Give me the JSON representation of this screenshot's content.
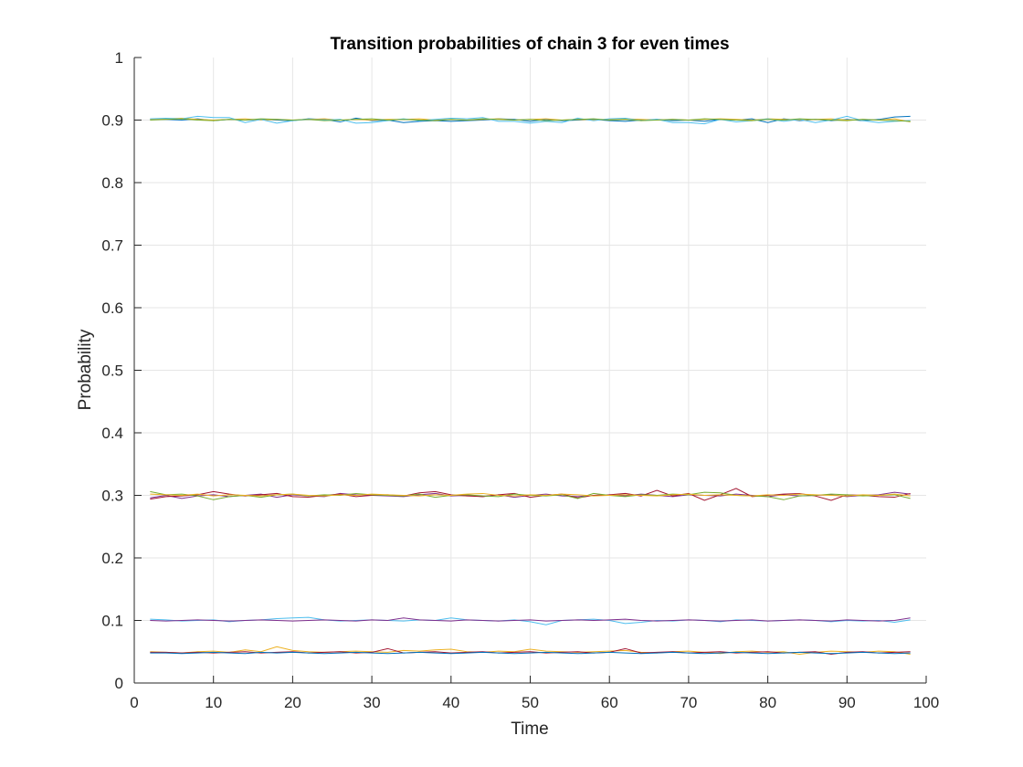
{
  "chart_data": {
    "type": "line",
    "title": "Transition probabilities of chain 3 for even times",
    "xlabel": "Time",
    "ylabel": "Probability",
    "xlim": [
      0,
      100
    ],
    "ylim": [
      0,
      1
    ],
    "grid": true,
    "xticks": [
      0,
      10,
      20,
      30,
      40,
      50,
      60,
      70,
      80,
      90,
      100
    ],
    "yticks": [
      0,
      0.1,
      0.2,
      0.3,
      0.4,
      0.5,
      0.6,
      0.7,
      0.8,
      0.9,
      1
    ],
    "xtick_labels": [
      "0",
      "10",
      "20",
      "30",
      "40",
      "50",
      "60",
      "70",
      "80",
      "90",
      "100"
    ],
    "ytick_labels": [
      "0",
      "0.1",
      "0.2",
      "0.3",
      "0.4",
      "0.5",
      "0.6",
      "0.7",
      "0.8",
      "0.9",
      "1"
    ],
    "x": [
      2,
      4,
      6,
      8,
      10,
      12,
      14,
      16,
      18,
      20,
      22,
      24,
      26,
      28,
      30,
      32,
      34,
      36,
      38,
      40,
      42,
      44,
      46,
      48,
      50,
      52,
      54,
      56,
      58,
      60,
      62,
      64,
      66,
      68,
      70,
      72,
      74,
      76,
      78,
      80,
      82,
      84,
      86,
      88,
      90,
      92,
      94,
      96,
      98
    ],
    "series": [
      {
        "color": "#0072BD",
        "values": [
          0.901,
          0.901,
          0.9,
          0.902,
          0.899,
          0.901,
          0.9,
          0.901,
          0.9,
          0.899,
          0.902,
          0.901,
          0.897,
          0.903,
          0.899,
          0.9,
          0.896,
          0.898,
          0.899,
          0.898,
          0.899,
          0.9,
          0.902,
          0.901,
          0.898,
          0.901,
          0.899,
          0.9,
          0.901,
          0.899,
          0.898,
          0.9,
          0.901,
          0.899,
          0.9,
          0.898,
          0.901,
          0.9,
          0.902,
          0.896,
          0.902,
          0.899,
          0.901,
          0.899,
          0.901,
          0.899,
          0.901,
          0.905,
          0.906
        ]
      },
      {
        "color": "#EDB120",
        "values": [
          0.901,
          0.902,
          0.903,
          0.901,
          0.9,
          0.901,
          0.902,
          0.9,
          0.901,
          0.9,
          0.901,
          0.902,
          0.9,
          0.901,
          0.9,
          0.901,
          0.901,
          0.902,
          0.9,
          0.901,
          0.9,
          0.901,
          0.902,
          0.9,
          0.901,
          0.902,
          0.9,
          0.901,
          0.9,
          0.901,
          0.902,
          0.901,
          0.9,
          0.901,
          0.9,
          0.901,
          0.902,
          0.901,
          0.9,
          0.902,
          0.901,
          0.9,
          0.901,
          0.902,
          0.9,
          0.901,
          0.9,
          0.902,
          0.897
        ]
      },
      {
        "color": "#4DBEEE",
        "values": [
          0.902,
          0.903,
          0.902,
          0.906,
          0.904,
          0.904,
          0.896,
          0.901,
          0.895,
          0.899,
          0.901,
          0.9,
          0.901,
          0.895,
          0.896,
          0.899,
          0.902,
          0.899,
          0.901,
          0.903,
          0.902,
          0.904,
          0.898,
          0.898,
          0.895,
          0.898,
          0.896,
          0.903,
          0.899,
          0.902,
          0.903,
          0.899,
          0.901,
          0.896,
          0.896,
          0.894,
          0.901,
          0.897,
          0.899,
          0.902,
          0.898,
          0.901,
          0.896,
          0.9,
          0.906,
          0.899,
          0.896,
          0.898,
          0.899
        ]
      },
      {
        "color": "#77AC30",
        "values": [
          0.9,
          0.901,
          0.902,
          0.9,
          0.899,
          0.901,
          0.9,
          0.902,
          0.901,
          0.9,
          0.901,
          0.899,
          0.9,
          0.901,
          0.902,
          0.9,
          0.901,
          0.9,
          0.899,
          0.901,
          0.9,
          0.902,
          0.901,
          0.9,
          0.901,
          0.899,
          0.9,
          0.901,
          0.902,
          0.9,
          0.901,
          0.899,
          0.9,
          0.901,
          0.9,
          0.902,
          0.901,
          0.9,
          0.899,
          0.901,
          0.9,
          0.902,
          0.901,
          0.9,
          0.899,
          0.901,
          0.9,
          0.899,
          0.898
        ]
      },
      {
        "color": "#7E2F8E",
        "values": [
          0.296,
          0.3,
          0.295,
          0.299,
          0.301,
          0.298,
          0.3,
          0.302,
          0.297,
          0.301,
          0.299,
          0.298,
          0.303,
          0.301,
          0.3,
          0.299,
          0.298,
          0.301,
          0.303,
          0.299,
          0.3,
          0.298,
          0.301,
          0.297,
          0.3,
          0.302,
          0.299,
          0.298,
          0.3,
          0.301,
          0.299,
          0.302,
          0.3,
          0.298,
          0.301,
          0.3,
          0.299,
          0.302,
          0.3,
          0.298,
          0.301,
          0.299,
          0.3,
          0.301,
          0.298,
          0.3,
          0.301,
          0.305,
          0.302
        ]
      },
      {
        "color": "#A2142F",
        "values": [
          0.294,
          0.298,
          0.299,
          0.301,
          0.306,
          0.302,
          0.299,
          0.301,
          0.303,
          0.298,
          0.297,
          0.3,
          0.302,
          0.298,
          0.3,
          0.301,
          0.299,
          0.304,
          0.306,
          0.301,
          0.299,
          0.298,
          0.301,
          0.303,
          0.297,
          0.3,
          0.302,
          0.296,
          0.3,
          0.301,
          0.303,
          0.299,
          0.308,
          0.299,
          0.303,
          0.292,
          0.301,
          0.311,
          0.298,
          0.3,
          0.302,
          0.303,
          0.299,
          0.292,
          0.301,
          0.3,
          0.298,
          0.297,
          0.303
        ]
      },
      {
        "color": "#77AC30",
        "values": [
          0.306,
          0.301,
          0.302,
          0.299,
          0.293,
          0.298,
          0.3,
          0.297,
          0.301,
          0.302,
          0.299,
          0.301,
          0.3,
          0.303,
          0.301,
          0.3,
          0.299,
          0.302,
          0.297,
          0.3,
          0.301,
          0.299,
          0.298,
          0.302,
          0.3,
          0.299,
          0.301,
          0.295,
          0.303,
          0.3,
          0.298,
          0.301,
          0.3,
          0.302,
          0.301,
          0.305,
          0.304,
          0.3,
          0.299,
          0.298,
          0.293,
          0.299,
          0.3,
          0.302,
          0.301,
          0.299,
          0.3,
          0.301,
          0.295
        ]
      },
      {
        "color": "#EDB120",
        "values": [
          0.302,
          0.301,
          0.3,
          0.302,
          0.299,
          0.301,
          0.3,
          0.299,
          0.301,
          0.302,
          0.3,
          0.299,
          0.301,
          0.3,
          0.302,
          0.301,
          0.3,
          0.299,
          0.301,
          0.3,
          0.302,
          0.303,
          0.3,
          0.299,
          0.301,
          0.3,
          0.302,
          0.301,
          0.299,
          0.3,
          0.301,
          0.3,
          0.299,
          0.301,
          0.302,
          0.3,
          0.301,
          0.3,
          0.299,
          0.301,
          0.3,
          0.302,
          0.301,
          0.3,
          0.299,
          0.301,
          0.3,
          0.302,
          0.299
        ]
      },
      {
        "color": "#4DBEEE",
        "values": [
          0.102,
          0.101,
          0.099,
          0.1,
          0.101,
          0.098,
          0.1,
          0.101,
          0.103,
          0.104,
          0.105,
          0.101,
          0.099,
          0.1,
          0.101,
          0.1,
          0.099,
          0.101,
          0.1,
          0.104,
          0.101,
          0.1,
          0.099,
          0.101,
          0.098,
          0.093,
          0.1,
          0.101,
          0.102,
          0.1,
          0.095,
          0.097,
          0.1,
          0.099,
          0.101,
          0.1,
          0.098,
          0.101,
          0.1,
          0.099,
          0.1,
          0.101,
          0.1,
          0.098,
          0.1,
          0.099,
          0.1,
          0.097,
          0.101
        ]
      },
      {
        "color": "#7E2F8E",
        "values": [
          0.1,
          0.099,
          0.1,
          0.101,
          0.1,
          0.099,
          0.1,
          0.101,
          0.1,
          0.099,
          0.1,
          0.101,
          0.1,
          0.099,
          0.101,
          0.1,
          0.104,
          0.101,
          0.1,
          0.099,
          0.101,
          0.1,
          0.099,
          0.1,
          0.101,
          0.099,
          0.1,
          0.101,
          0.1,
          0.101,
          0.102,
          0.1,
          0.099,
          0.1,
          0.101,
          0.1,
          0.099,
          0.1,
          0.101,
          0.099,
          0.1,
          0.101,
          0.1,
          0.099,
          0.101,
          0.1,
          0.099,
          0.1,
          0.104
        ]
      },
      {
        "color": "#EDB120",
        "values": [
          0.05,
          0.049,
          0.048,
          0.05,
          0.051,
          0.049,
          0.053,
          0.05,
          0.058,
          0.052,
          0.05,
          0.049,
          0.05,
          0.051,
          0.05,
          0.049,
          0.052,
          0.051,
          0.053,
          0.054,
          0.05,
          0.049,
          0.051,
          0.05,
          0.054,
          0.051,
          0.05,
          0.049,
          0.05,
          0.051,
          0.052,
          0.049,
          0.048,
          0.05,
          0.051,
          0.049,
          0.047,
          0.05,
          0.051,
          0.049,
          0.05,
          0.046,
          0.049,
          0.051,
          0.05,
          0.049,
          0.051,
          0.05,
          0.046
        ]
      },
      {
        "color": "#A2142F",
        "values": [
          0.049,
          0.049,
          0.048,
          0.049,
          0.048,
          0.049,
          0.05,
          0.048,
          0.049,
          0.05,
          0.048,
          0.049,
          0.05,
          0.048,
          0.049,
          0.055,
          0.048,
          0.049,
          0.05,
          0.048,
          0.049,
          0.05,
          0.048,
          0.049,
          0.05,
          0.048,
          0.049,
          0.05,
          0.048,
          0.049,
          0.055,
          0.048,
          0.049,
          0.05,
          0.048,
          0.049,
          0.05,
          0.048,
          0.049,
          0.05,
          0.048,
          0.049,
          0.05,
          0.046,
          0.049,
          0.05,
          0.048,
          0.049,
          0.05
        ]
      },
      {
        "color": "#0072BD",
        "values": [
          0.048,
          0.048,
          0.047,
          0.048,
          0.049,
          0.048,
          0.047,
          0.049,
          0.048,
          0.049,
          0.048,
          0.047,
          0.048,
          0.049,
          0.048,
          0.047,
          0.048,
          0.049,
          0.048,
          0.047,
          0.048,
          0.049,
          0.048,
          0.047,
          0.048,
          0.049,
          0.048,
          0.047,
          0.048,
          0.049,
          0.048,
          0.047,
          0.048,
          0.049,
          0.048,
          0.047,
          0.048,
          0.049,
          0.048,
          0.047,
          0.048,
          0.049,
          0.048,
          0.047,
          0.048,
          0.049,
          0.048,
          0.047,
          0.048
        ]
      },
      {
        "color": "#D95319",
        "values": [
          0,
          0,
          0,
          0,
          0,
          0,
          0,
          0,
          0,
          0,
          0,
          0,
          0,
          0,
          0,
          0,
          0,
          0,
          0,
          0,
          0,
          0,
          0,
          0,
          0,
          0,
          0,
          0,
          0,
          0,
          0,
          0,
          0,
          0,
          0,
          0,
          0,
          0,
          0,
          0,
          0,
          0,
          0,
          0,
          0,
          0,
          0,
          0,
          0
        ]
      }
    ]
  }
}
